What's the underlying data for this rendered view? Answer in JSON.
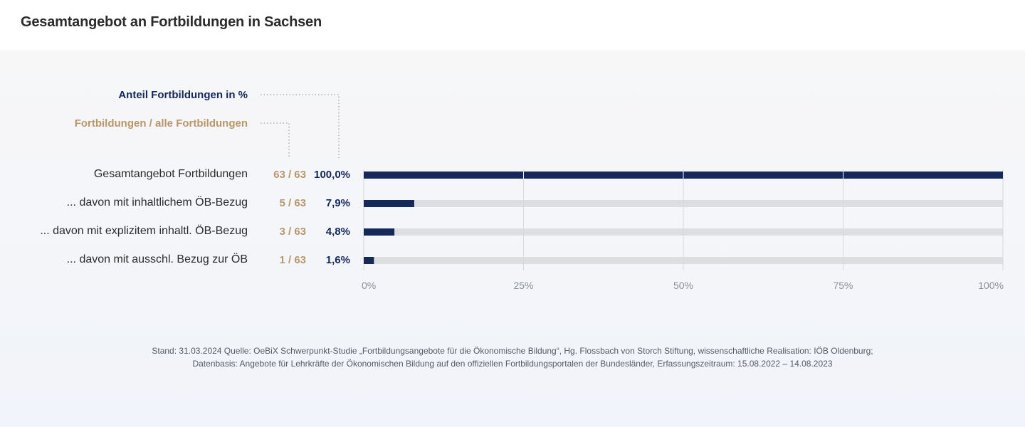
{
  "title": "Gesamtangebot an Fortbildungen in Sachsen",
  "legend": {
    "percent_label": "Anteil Fortbildungen  in %",
    "count_label": "Fortbildungen / alle Fortbildungen"
  },
  "colors": {
    "bar": "#14285a",
    "track": "#dddee0",
    "count": "#b8976a",
    "grid": "#d6d8dc"
  },
  "chart_data": {
    "type": "bar",
    "orientation": "horizontal",
    "categories": [
      "Gesamtangebot Fortbildungen",
      "... davon mit inhaltlichem ÖB-Bezug",
      "... davon mit explizitem inhaltl. ÖB-Bezug",
      "... davon mit ausschl. Bezug zur ÖB"
    ],
    "values": [
      100.0,
      7.9,
      4.8,
      1.6
    ],
    "value_labels": [
      "100,0%",
      "7,9%",
      "4,8%",
      "1,6%"
    ],
    "count_labels": [
      "63 / 63",
      "5 / 63",
      "3 / 63",
      "1 / 63"
    ],
    "xlim": [
      0,
      100
    ],
    "xticks": [
      0,
      25,
      50,
      75,
      100
    ],
    "xtick_labels": [
      "0%",
      "25%",
      "50%",
      "75%",
      "100%"
    ],
    "grid": true
  },
  "footnote": {
    "line1": "Stand: 31.03.2024 Quelle: OeBiX Schwerpunkt-Studie „Fortbildungsangebote für die Ökonomische Bildung“, Hg. Flossbach von Storch Stiftung, wissenschaftliche Realisation: IÖB Oldenburg;",
    "line2": "Datenbasis: Angebote für Lehrkräfte der Ökonomischen Bildung auf den offiziellen Fortbildungsportalen der Bundesländer, Erfassungszeitraum: 15.08.2022 – 14.08.2023"
  }
}
